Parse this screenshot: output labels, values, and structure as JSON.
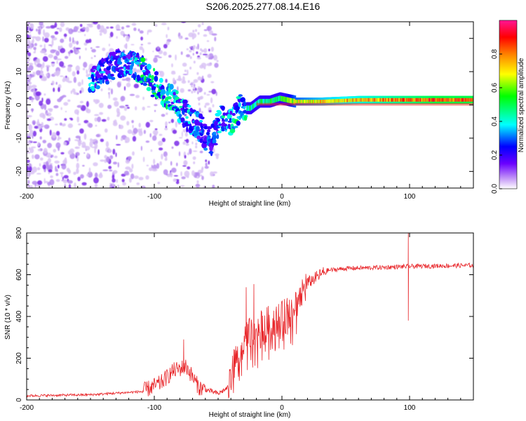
{
  "page_title": "S206.2025.277.08.14.E16",
  "chart_data": [
    {
      "type": "heatmap",
      "title": "S206.2025.277.08.14.E16",
      "xlabel": "Height of straight line (km)",
      "ylabel": "Frequency (Hz)",
      "xlim": [
        -200,
        150
      ],
      "ylim": [
        -25,
        25
      ],
      "x_ticks": [
        "-200",
        "-100",
        "0",
        "100"
      ],
      "y_ticks": [
        "-20",
        "-10",
        "0",
        "10",
        "20"
      ],
      "colorbar": {
        "label": "Normalized spectral amplitude",
        "range": [
          0,
          1
        ],
        "ticks": [
          "0.0",
          "0.2",
          "0.4",
          "0.6",
          "0.8"
        ],
        "colormap": [
          "#ffffff",
          "#a855f7",
          "#5b00ff",
          "#0000ff",
          "#00ffff",
          "#00ff00",
          "#ffff00",
          "#ff7f00",
          "#ff0000",
          "#ff1493"
        ]
      },
      "ridge": [
        {
          "x": -145,
          "y": 8,
          "a": 0.35
        },
        {
          "x": -135,
          "y": 11,
          "a": 0.3
        },
        {
          "x": -125,
          "y": 13,
          "a": 0.3
        },
        {
          "x": -115,
          "y": 12,
          "a": 0.35
        },
        {
          "x": -108,
          "y": 10,
          "a": 0.45
        },
        {
          "x": -100,
          "y": 6,
          "a": 0.45
        },
        {
          "x": -93,
          "y": 4,
          "a": 0.45
        },
        {
          "x": -85,
          "y": 1,
          "a": 0.4
        },
        {
          "x": -78,
          "y": -2,
          "a": 0.4
        },
        {
          "x": -70,
          "y": -5,
          "a": 0.35
        },
        {
          "x": -62,
          "y": -8,
          "a": 0.3
        },
        {
          "x": -55,
          "y": -11,
          "a": 0.25
        },
        {
          "x": -48,
          "y": -4,
          "a": 0.4
        },
        {
          "x": -40,
          "y": -5,
          "a": 0.4
        },
        {
          "x": -32,
          "y": -1,
          "a": 0.45
        },
        {
          "x": -25,
          "y": -1,
          "a": 0.45
        },
        {
          "x": -18,
          "y": 1,
          "a": 0.45
        },
        {
          "x": -10,
          "y": 1,
          "a": 0.5
        },
        {
          "x": -2,
          "y": 2,
          "a": 0.5
        },
        {
          "x": 10,
          "y": 1,
          "a": 0.65
        },
        {
          "x": 30,
          "y": 1,
          "a": 0.7
        },
        {
          "x": 60,
          "y": 1.5,
          "a": 0.75
        },
        {
          "x": 90,
          "y": 1.5,
          "a": 0.8
        },
        {
          "x": 120,
          "y": 1.5,
          "a": 0.85
        },
        {
          "x": 148,
          "y": 1.5,
          "a": 0.85
        }
      ]
    },
    {
      "type": "line",
      "xlabel": "Height of straight line (km)",
      "ylabel": "SNR (10 * v/v)",
      "xlim": [
        -200,
        150
      ],
      "ylim": [
        0,
        800
      ],
      "x_ticks": [
        "-200",
        "-100",
        "0",
        "100"
      ],
      "y_ticks": [
        "0",
        "200",
        "400",
        "600",
        "800"
      ],
      "series": [
        {
          "name": "SNR",
          "color": "#e8262a",
          "envelope": {
            "x": [
              -200,
              -150,
              -110,
              -95,
              -85,
              -75,
              -65,
              -50,
              -42,
              -35,
              -28,
              -22,
              -15,
              -8,
              0,
              10,
              20,
              35,
              50,
              80,
              100,
              150
            ],
            "y": [
              20,
              25,
              40,
              80,
              140,
              160,
              60,
              30,
              60,
              220,
              300,
              320,
              350,
              380,
              390,
              450,
              560,
              620,
              630,
              635,
              640,
              645
            ]
          },
          "spikes": [
            {
              "x": -77,
              "y": 290
            },
            {
              "x": -28,
              "y": 540
            },
            {
              "x": -22,
              "y": 555
            },
            {
              "x": 99,
              "y": 800
            },
            {
              "x": 99,
              "y": 380
            }
          ]
        }
      ]
    }
  ]
}
